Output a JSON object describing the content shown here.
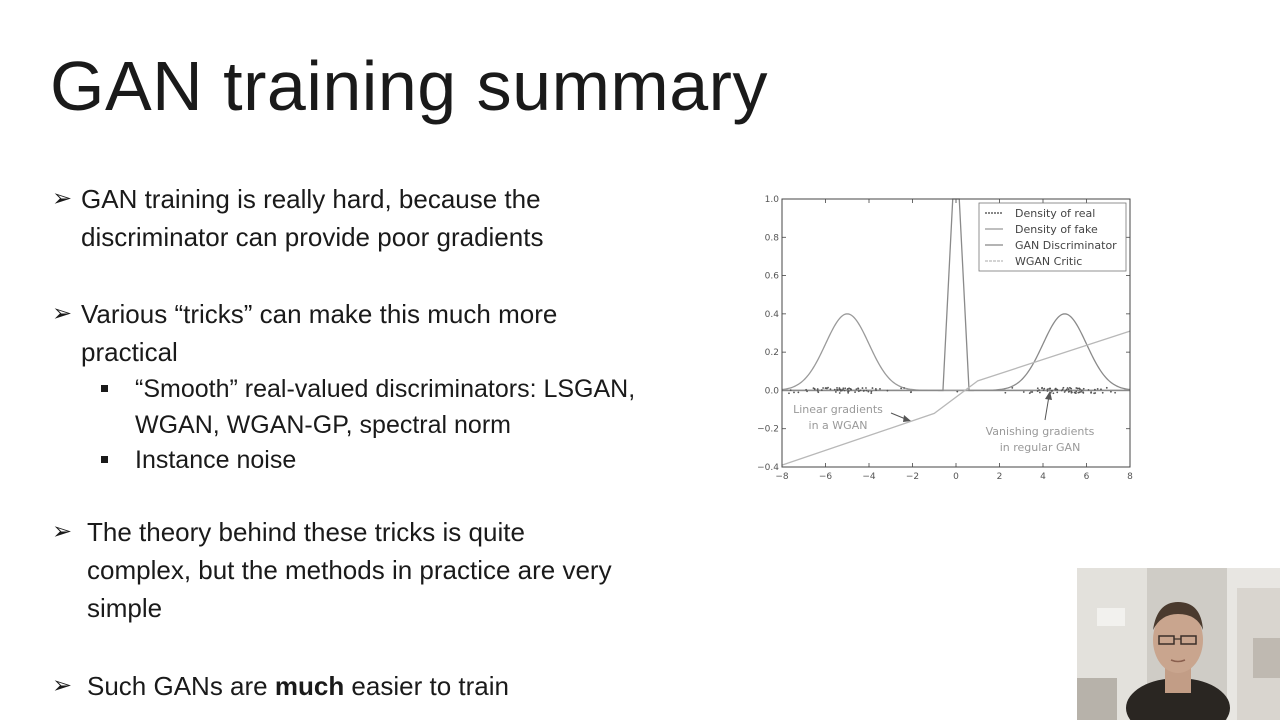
{
  "slide": {
    "title": "GAN training summary",
    "bullets": [
      {
        "arrow": "➢",
        "text": "GAN training is really hard, because the discriminator can provide poor gradients"
      },
      {
        "arrow": "➢",
        "text": "Various “tricks” can make this much more practical"
      },
      {
        "arrow": "➢",
        "text": "The theory behind these tricks is quite complex, but the methods in practice are very simple"
      }
    ],
    "sub_bullets": [
      "“Smooth” real-valued discriminators: LSGAN, WGAN, WGAN-GP, spectral norm",
      "Instance noise"
    ],
    "last_bullet": {
      "arrow": "➢",
      "pre": "Such GANs are ",
      "bold": "much",
      "post": " easier to train"
    }
  },
  "chart_data": {
    "type": "line",
    "xlim": [
      -8,
      8
    ],
    "ylim": [
      -0.4,
      1.0
    ],
    "x_ticks": [
      "−8",
      "−6",
      "−4",
      "−2",
      "0",
      "2",
      "4",
      "6",
      "8"
    ],
    "y_ticks": [
      "−0.4",
      "−0.2",
      "0.0",
      "0.2",
      "0.4",
      "0.6",
      "0.8",
      "1.0"
    ],
    "legend": [
      "Density of real",
      "Density of fake",
      "GAN Discriminator",
      "WGAN Critic"
    ],
    "legend_position": "top-right",
    "grid": false,
    "series": [
      {
        "name": "Density of real",
        "description": "gaussian",
        "mean": 5,
        "peak": 0.4
      },
      {
        "name": "Density of fake",
        "description": "gaussian",
        "mean": -5,
        "peak": 0.4
      },
      {
        "name": "GAN Discriminator",
        "x": [
          -8,
          -0.6,
          -0.15,
          0,
          0.15,
          0.6,
          8
        ],
        "y": [
          0.0,
          0.0,
          1.0,
          1.0,
          1.0,
          0.0,
          0.0
        ]
      },
      {
        "name": "WGAN Critic",
        "x": [
          -8,
          -1,
          1,
          8
        ],
        "y": [
          -0.39,
          -0.12,
          0.05,
          0.31
        ]
      }
    ],
    "annotations": [
      {
        "text": [
          "Linear gradients",
          "in a WGAN"
        ]
      },
      {
        "text": [
          "Vanishing gradients",
          "in regular GAN"
        ]
      }
    ],
    "colors": {
      "real": "#8a8a8a",
      "fake": "#9a9a9a",
      "gan": "#8a8a8a",
      "wgan": "#b8b8b8",
      "axes": "#444444"
    }
  }
}
